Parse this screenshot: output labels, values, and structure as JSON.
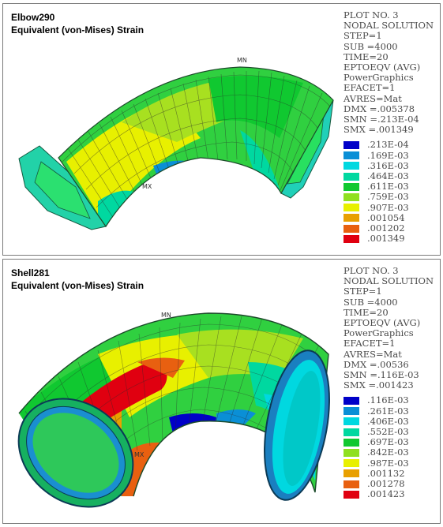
{
  "panels": [
    {
      "title_line1": "Elbow290",
      "title_line2": "Equivalent (von-Mises) Strain",
      "info": [
        "PLOT NO.   3",
        "NODAL SOLUTION",
        "STEP=1",
        "SUB =4000",
        "TIME=20",
        "EPTOEQV   (AVG)",
        "PowerGraphics",
        "EFACET=1",
        "AVRES=Mat",
        "DMX =.005378",
        "SMN =.213E-04",
        "SMX =.001349"
      ],
      "legend": [
        ".213E-04",
        ".169E-03",
        ".316E-03",
        ".464E-03",
        ".611E-03",
        ".759E-03",
        ".907E-03",
        ".001054",
        ".001202",
        ".001349"
      ],
      "mark_max": "MX",
      "mark_min": "MN"
    },
    {
      "title_line1": "Shell281",
      "title_line2": "Equivalent (von-Mises) Strain",
      "info": [
        "PLOT NO.   3",
        "NODAL SOLUTION",
        "STEP=1",
        "SUB =4000",
        "TIME=20",
        "EPTOEQV   (AVG)",
        "PowerGraphics",
        "EFACET=1",
        "AVRES=Mat",
        "DMX =.00536",
        "SMN =.116E-03",
        "SMX =.001423"
      ],
      "legend": [
        ".116E-03",
        ".261E-03",
        ".406E-03",
        ".552E-03",
        ".697E-03",
        ".842E-03",
        ".987E-03",
        ".001132",
        ".001278",
        ".001423"
      ],
      "mark_max": "MX",
      "mark_min": "MN"
    }
  ],
  "legend_colors": [
    "#0000c8",
    "#0a8fd6",
    "#00d8e0",
    "#00d8a0",
    "#10c830",
    "#90e020",
    "#e8f000",
    "#e8a000",
    "#e86010",
    "#e00010"
  ]
}
